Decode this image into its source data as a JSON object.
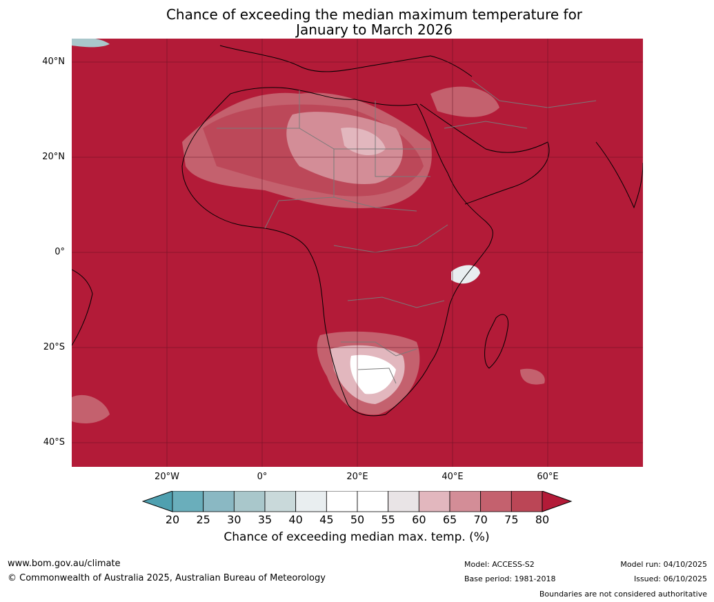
{
  "title": {
    "line1": "Chance of exceeding the median maximum temperature for",
    "line2": "January to March 2026"
  },
  "map": {
    "background_color": "#b31b38",
    "lat_labels": [
      "40°N",
      "20°N",
      "0°",
      "20°S",
      "40°S"
    ],
    "lon_labels": [
      "20°W",
      "0°",
      "20°E",
      "40°E",
      "60°E"
    ]
  },
  "colorbar": {
    "ticks": [
      "20",
      "25",
      "30",
      "35",
      "40",
      "45",
      "50",
      "55",
      "60",
      "65",
      "70",
      "75",
      "80"
    ],
    "colors": [
      "#4fa0b0",
      "#6aaebb",
      "#8ab8c3",
      "#a9c7cb",
      "#c9d9da",
      "#e9eef0",
      "#ffffff",
      "#ffffff",
      "#e9e4e6",
      "#e2b7be",
      "#d38d97",
      "#c4616e",
      "#bb4656",
      "#b31b38"
    ],
    "label": "Chance of exceeding median max. temp. (%)"
  },
  "footer": {
    "url": "www.bom.gov.au/climate",
    "copyright": "© Commonwealth of Australia 2025, Australian Bureau of Meteorology",
    "model": "Model: ACCESS-S2",
    "base_period": "Base period: 1981-2018",
    "model_run": "Model run: 04/10/2025",
    "issued": "Issued: 06/10/2025",
    "disclaimer": "Boundaries are not considered authoritative"
  }
}
